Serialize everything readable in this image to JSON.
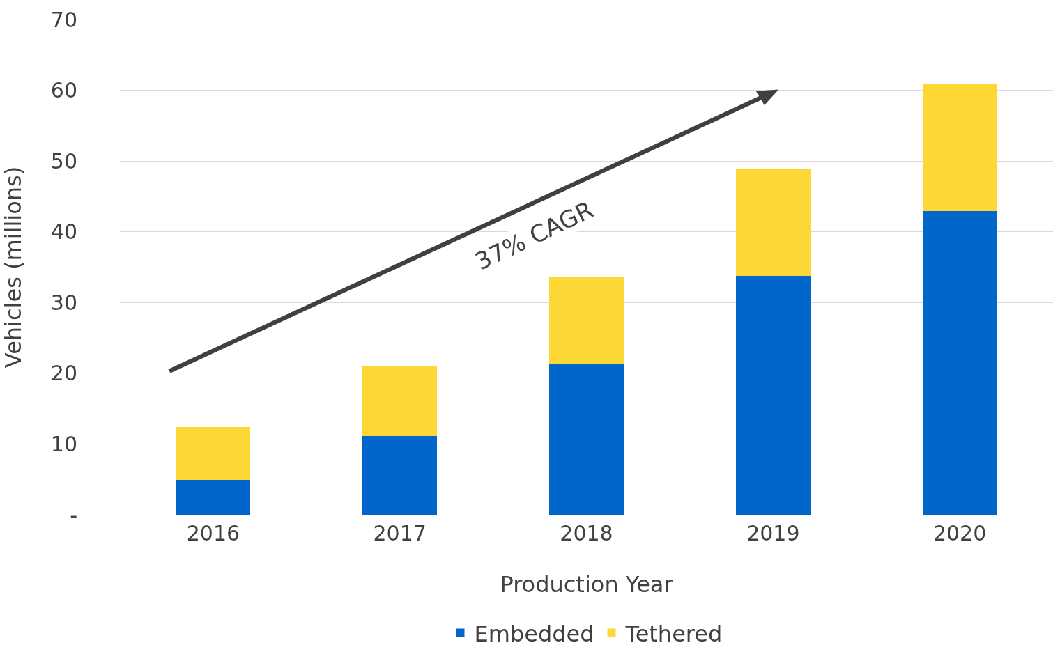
{
  "chart_data": {
    "type": "bar",
    "stacked": true,
    "xlabel": "Production Year",
    "ylabel": "Vehicles (millions)",
    "categories": [
      "2016",
      "2017",
      "2018",
      "2019",
      "2020"
    ],
    "series": [
      {
        "name": "Embedded",
        "color": "#0066cc",
        "values": [
          4.9,
          11.1,
          21.4,
          33.8,
          42.9
        ]
      },
      {
        "name": "Tethered",
        "color": "#fdd733",
        "values": [
          7.5,
          10.0,
          12.3,
          15.0,
          18.0
        ]
      }
    ],
    "ylim": [
      0,
      70
    ],
    "yticks": [
      {
        "value": 0,
        "label": "-"
      },
      10,
      20,
      30,
      40,
      50,
      60,
      70
    ],
    "grid": "y",
    "legend": "bottom",
    "annotations": [
      "37% CAGR"
    ]
  }
}
